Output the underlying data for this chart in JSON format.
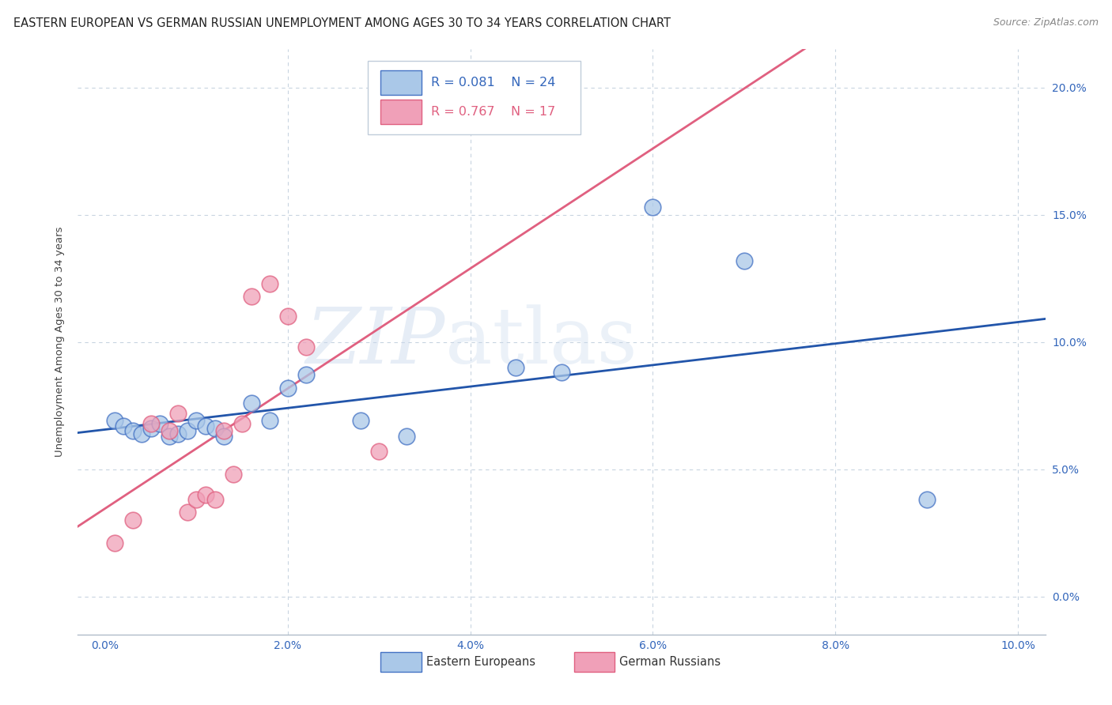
{
  "title": "EASTERN EUROPEAN VS GERMAN RUSSIAN UNEMPLOYMENT AMONG AGES 30 TO 34 YEARS CORRELATION CHART",
  "source": "Source: ZipAtlas.com",
  "ylabel": "Unemployment Among Ages 30 to 34 years",
  "watermark": "ZIPatlas",
  "legend_entries": [
    {
      "label": "Eastern Europeans",
      "R": "0.081",
      "N": "24"
    },
    {
      "label": "German Russians",
      "R": "0.767",
      "N": "17"
    }
  ],
  "eastern_european_x": [
    0.001,
    0.002,
    0.003,
    0.004,
    0.005,
    0.006,
    0.007,
    0.008,
    0.009,
    0.01,
    0.011,
    0.012,
    0.013,
    0.016,
    0.018,
    0.02,
    0.022,
    0.028,
    0.033,
    0.045,
    0.05,
    0.06,
    0.07,
    0.09
  ],
  "eastern_european_y": [
    0.069,
    0.067,
    0.065,
    0.064,
    0.066,
    0.068,
    0.063,
    0.064,
    0.065,
    0.069,
    0.067,
    0.066,
    0.063,
    0.076,
    0.069,
    0.082,
    0.087,
    0.069,
    0.063,
    0.09,
    0.088,
    0.153,
    0.132,
    0.038
  ],
  "german_russian_x": [
    0.001,
    0.003,
    0.005,
    0.007,
    0.008,
    0.009,
    0.01,
    0.011,
    0.012,
    0.013,
    0.014,
    0.015,
    0.016,
    0.018,
    0.02,
    0.022,
    0.03
  ],
  "german_russian_y": [
    0.021,
    0.03,
    0.068,
    0.065,
    0.072,
    0.033,
    0.038,
    0.04,
    0.038,
    0.065,
    0.048,
    0.068,
    0.118,
    0.123,
    0.11,
    0.098,
    0.057
  ],
  "eastern_european_fill": "#aac8e8",
  "eastern_european_edge": "#4472c4",
  "german_russian_fill": "#f0a0b8",
  "german_russian_edge": "#e06080",
  "eastern_european_line_color": "#2255aa",
  "german_russian_line_color": "#e06080",
  "title_fontsize": 10.5,
  "axis_label_fontsize": 9.5,
  "tick_fontsize": 10,
  "background_color": "#ffffff",
  "grid_color": "#c8d4e0",
  "xlim": [
    -0.003,
    0.103
  ],
  "ylim": [
    -0.015,
    0.215
  ],
  "yticks": [
    0.0,
    0.05,
    0.1,
    0.15,
    0.2
  ],
  "xticks": [
    0.0,
    0.02,
    0.04,
    0.06,
    0.08,
    0.1
  ]
}
